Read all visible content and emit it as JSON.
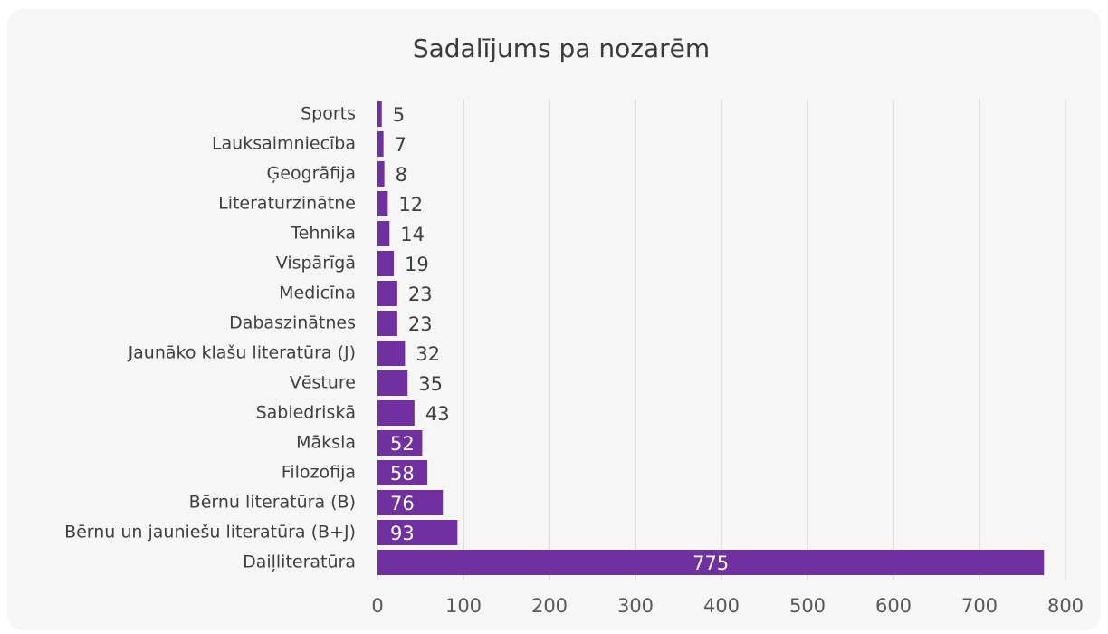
{
  "chart_data": {
    "type": "barh",
    "title": "Sadalījums pa nozarēm",
    "categories": [
      "Sports",
      "Lauksaimniecība",
      "Ģeogrāfija",
      "Literaturzinātne",
      "Tehnika",
      "Vispārīgā",
      "Medicīna",
      "Dabaszinātnes",
      "Jaunāko klašu literatūra (J)",
      "Vēsture",
      "Sabiedriskā",
      "Māksla",
      "Filozofija",
      "Bērnu literatūra (B)",
      "Bērnu un jauniešu literatūra (B+J)",
      "Daiļliteratūra"
    ],
    "values": [
      5,
      7,
      8,
      12,
      14,
      19,
      23,
      23,
      32,
      35,
      43,
      52,
      58,
      76,
      93,
      775
    ],
    "color": "#7030a0",
    "xlim": [
      0,
      800
    ],
    "xticks": [
      0,
      100,
      200,
      300,
      400,
      500,
      600,
      700,
      800
    ],
    "grid": true
  }
}
